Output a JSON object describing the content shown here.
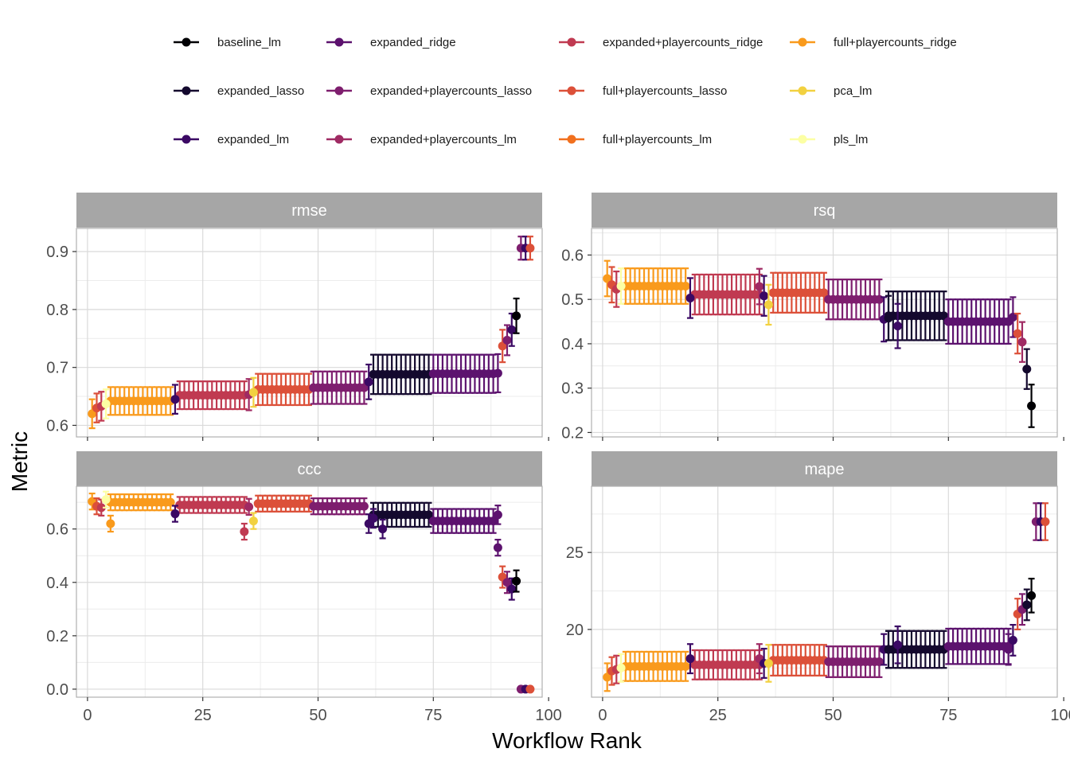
{
  "chart_data": {
    "type": "scatter",
    "xlabel": "Workflow Rank",
    "ylabel": "Metric",
    "legend_position": "top",
    "grid": true,
    "x_ticks": [
      0,
      25,
      50,
      75,
      100
    ],
    "series_legend": [
      {
        "name": "baseline_lm",
        "color": "#000004"
      },
      {
        "name": "expanded_lasso",
        "color": "#14092e"
      },
      {
        "name": "expanded_lm",
        "color": "#3b0964"
      },
      {
        "name": "expanded_ridge",
        "color": "#5c126e"
      },
      {
        "name": "expanded+playercounts_lasso",
        "color": "#7e1e6e"
      },
      {
        "name": "expanded+playercounts_lm",
        "color": "#9f2a63"
      },
      {
        "name": "expanded+playercounts_ridge",
        "color": "#c03a51"
      },
      {
        "name": "full+playercounts_lasso",
        "color": "#dc5039"
      },
      {
        "name": "full+playercounts_lm",
        "color": "#f1701e"
      },
      {
        "name": "full+playercounts_ridge",
        "color": "#f99a1c"
      },
      {
        "name": "pca_lm",
        "color": "#f2d140"
      },
      {
        "name": "pls_lm",
        "color": "#fcffa4"
      }
    ],
    "panels": [
      {
        "title": "rmse",
        "ylim": [
          0.58,
          0.94
        ],
        "y_ticks": [
          0.6,
          0.7,
          0.8,
          0.9
        ],
        "groups": [
          {
            "series": "full+playercounts_ridge",
            "x": [
              5,
              18
            ],
            "y": 0.642,
            "half": 0.024
          },
          {
            "series": "expanded+playercounts_ridge",
            "x": [
              20,
              34
            ],
            "y": 0.652,
            "half": 0.024
          },
          {
            "series": "full+playercounts_lasso",
            "x": [
              37,
              48
            ],
            "y": 0.662,
            "half": 0.027
          },
          {
            "series": "expanded+playercounts_lasso",
            "x": [
              49,
              60
            ],
            "y": 0.665,
            "half": 0.028
          },
          {
            "series": "expanded_lasso",
            "x": [
              62,
              74
            ],
            "y": 0.688,
            "half": 0.034
          },
          {
            "series": "expanded_ridge",
            "x": [
              75,
              88
            ],
            "y": 0.689,
            "half": 0.033
          }
        ],
        "points": [
          {
            "series": "full+playercounts_ridge",
            "x": 1,
            "y": 0.62,
            "half": 0.025
          },
          {
            "series": "full+playercounts_lasso",
            "x": 2,
            "y": 0.63,
            "half": 0.025
          },
          {
            "series": "expanded+playercounts_ridge",
            "x": 3,
            "y": 0.633,
            "half": 0.025
          },
          {
            "series": "pls_lm",
            "x": 4,
            "y": 0.637,
            "half": 0.025
          },
          {
            "series": "expanded_lm",
            "x": 19,
            "y": 0.645,
            "half": 0.025
          },
          {
            "series": "expanded+playercounts_lm",
            "x": 35,
            "y": 0.653,
            "half": 0.027
          },
          {
            "series": "pca_lm",
            "x": 36,
            "y": 0.657,
            "half": 0.025
          },
          {
            "series": "expanded_lm",
            "x": 61,
            "y": 0.675,
            "half": 0.03
          },
          {
            "series": "expanded_ridge",
            "x": 89,
            "y": 0.69,
            "half": 0.033
          },
          {
            "series": "full+playercounts_lasso",
            "x": 90,
            "y": 0.737,
            "half": 0.028
          },
          {
            "series": "expanded+playercounts_lasso",
            "x": 91,
            "y": 0.747,
            "half": 0.026
          },
          {
            "series": "expanded_lm",
            "x": 92,
            "y": 0.765,
            "half": 0.028
          },
          {
            "series": "baseline_lm",
            "x": 93,
            "y": 0.789,
            "half": 0.03
          },
          {
            "series": "expanded+playercounts_lasso",
            "x": 94,
            "y": 0.906,
            "half": 0.02
          },
          {
            "series": "expanded_lm",
            "x": 95,
            "y": 0.906,
            "half": 0.02
          },
          {
            "series": "full+playercounts_lasso",
            "x": 96,
            "y": 0.906,
            "half": 0.02
          }
        ]
      },
      {
        "title": "rsq",
        "ylim": [
          0.19,
          0.66
        ],
        "y_ticks": [
          0.2,
          0.3,
          0.4,
          0.5,
          0.6
        ],
        "groups": [
          {
            "series": "full+playercounts_ridge",
            "x": [
              5,
              18
            ],
            "y": 0.53,
            "half": 0.04
          },
          {
            "series": "expanded+playercounts_ridge",
            "x": [
              20,
              34
            ],
            "y": 0.511,
            "half": 0.045
          },
          {
            "series": "full+playercounts_lasso",
            "x": [
              37,
              48
            ],
            "y": 0.515,
            "half": 0.045
          },
          {
            "series": "expanded+playercounts_lasso",
            "x": [
              49,
              60
            ],
            "y": 0.5,
            "half": 0.045
          },
          {
            "series": "expanded_lasso",
            "x": [
              62,
              74
            ],
            "y": 0.463,
            "half": 0.055
          },
          {
            "series": "expanded_ridge",
            "x": [
              75,
              88
            ],
            "y": 0.45,
            "half": 0.05
          }
        ],
        "points": [
          {
            "series": "full+playercounts_ridge",
            "x": 1,
            "y": 0.547,
            "half": 0.04
          },
          {
            "series": "full+playercounts_lasso",
            "x": 2,
            "y": 0.533,
            "half": 0.04
          },
          {
            "series": "expanded+playercounts_ridge",
            "x": 3,
            "y": 0.523,
            "half": 0.04
          },
          {
            "series": "pls_lm",
            "x": 4,
            "y": 0.53,
            "half": 0.04
          },
          {
            "series": "expanded_lm",
            "x": 19,
            "y": 0.503,
            "half": 0.045
          },
          {
            "series": "expanded+playercounts_lm",
            "x": 34,
            "y": 0.529,
            "half": 0.04
          },
          {
            "series": "expanded_lm",
            "x": 35,
            "y": 0.508,
            "half": 0.045
          },
          {
            "series": "pca_lm",
            "x": 36,
            "y": 0.488,
            "half": 0.045
          },
          {
            "series": "expanded_lm",
            "x": 61,
            "y": 0.455,
            "half": 0.05
          },
          {
            "series": "expanded_lasso",
            "x": 62,
            "y": 0.458,
            "half": 0.05
          },
          {
            "series": "expanded_lm",
            "x": 64,
            "y": 0.44,
            "half": 0.05
          },
          {
            "series": "expanded_ridge",
            "x": 89,
            "y": 0.46,
            "half": 0.045
          },
          {
            "series": "full+playercounts_lasso",
            "x": 90,
            "y": 0.423,
            "half": 0.045
          },
          {
            "series": "expanded+playercounts_lm",
            "x": 91,
            "y": 0.404,
            "half": 0.045
          },
          {
            "series": "expanded_lasso",
            "x": 92,
            "y": 0.343,
            "half": 0.045
          },
          {
            "series": "baseline_lm",
            "x": 93,
            "y": 0.26,
            "half": 0.048
          }
        ]
      },
      {
        "title": "ccc",
        "ylim": [
          -0.03,
          0.76
        ],
        "y_ticks": [
          0.0,
          0.2,
          0.4,
          0.6
        ],
        "groups": [
          {
            "series": "full+playercounts_ridge",
            "x": [
              5,
              18
            ],
            "y": 0.7,
            "half": 0.03
          },
          {
            "series": "expanded+playercounts_ridge",
            "x": [
              20,
              34
            ],
            "y": 0.69,
            "half": 0.03
          },
          {
            "series": "full+playercounts_lasso",
            "x": [
              37,
              48
            ],
            "y": 0.695,
            "half": 0.03
          },
          {
            "series": "expanded+playercounts_lasso",
            "x": [
              49,
              60
            ],
            "y": 0.685,
            "half": 0.03
          },
          {
            "series": "expanded_lasso",
            "x": [
              62,
              74
            ],
            "y": 0.653,
            "half": 0.045
          },
          {
            "series": "expanded_ridge",
            "x": [
              75,
              88
            ],
            "y": 0.63,
            "half": 0.045
          }
        ],
        "points": [
          {
            "series": "full+playercounts_ridge",
            "x": 1,
            "y": 0.703,
            "half": 0.03
          },
          {
            "series": "full+playercounts_lasso",
            "x": 2,
            "y": 0.685,
            "half": 0.03
          },
          {
            "series": "expanded+playercounts_ridge",
            "x": 3,
            "y": 0.68,
            "half": 0.03
          },
          {
            "series": "pls_lm",
            "x": 4,
            "y": 0.71,
            "half": 0.03
          },
          {
            "series": "full+playercounts_ridge",
            "x": 5,
            "y": 0.62,
            "half": 0.03
          },
          {
            "series": "expanded_lm",
            "x": 19,
            "y": 0.657,
            "half": 0.03
          },
          {
            "series": "expanded+playercounts_ridge",
            "x": 34,
            "y": 0.59,
            "half": 0.03
          },
          {
            "series": "expanded+playercounts_lm",
            "x": 35,
            "y": 0.683,
            "half": 0.03
          },
          {
            "series": "pca_lm",
            "x": 36,
            "y": 0.63,
            "half": 0.03
          },
          {
            "series": "expanded_lm",
            "x": 61,
            "y": 0.62,
            "half": 0.035
          },
          {
            "series": "expanded_lm",
            "x": 62,
            "y": 0.64,
            "half": 0.035
          },
          {
            "series": "expanded_lm",
            "x": 64,
            "y": 0.6,
            "half": 0.035
          },
          {
            "series": "expanded_ridge",
            "x": 89,
            "y": 0.653,
            "half": 0.035
          },
          {
            "series": "expanded_ridge",
            "x": 89,
            "y": 0.53,
            "half": 0.03
          },
          {
            "series": "full+playercounts_lasso",
            "x": 90,
            "y": 0.42,
            "half": 0.04
          },
          {
            "series": "expanded+playercounts_lasso",
            "x": 91,
            "y": 0.4,
            "half": 0.04
          },
          {
            "series": "expanded_lm",
            "x": 92,
            "y": 0.375,
            "half": 0.04
          },
          {
            "series": "baseline_lm",
            "x": 93,
            "y": 0.405,
            "half": 0.04
          },
          {
            "series": "expanded+playercounts_lasso",
            "x": 94,
            "y": 0.0,
            "half": 0.0
          },
          {
            "series": "expanded_lm",
            "x": 95,
            "y": 0.0,
            "half": 0.0
          },
          {
            "series": "full+playercounts_lasso",
            "x": 96,
            "y": 0.0,
            "half": 0.0
          }
        ]
      },
      {
        "title": "mape",
        "ylim": [
          15.6,
          29.3
        ],
        "y_ticks": [
          20,
          25
        ],
        "groups": [
          {
            "series": "full+playercounts_ridge",
            "x": [
              5,
              18
            ],
            "y": 17.6,
            "half": 0.95
          },
          {
            "series": "expanded+playercounts_ridge",
            "x": [
              20,
              34
            ],
            "y": 17.7,
            "half": 0.95
          },
          {
            "series": "full+playercounts_lasso",
            "x": [
              37,
              48
            ],
            "y": 18.0,
            "half": 1.0
          },
          {
            "series": "expanded+playercounts_lasso",
            "x": [
              49,
              60
            ],
            "y": 17.9,
            "half": 1.0
          },
          {
            "series": "expanded_lasso",
            "x": [
              62,
              74
            ],
            "y": 18.7,
            "half": 1.2
          },
          {
            "series": "expanded_ridge",
            "x": [
              75,
              88
            ],
            "y": 18.9,
            "half": 1.15
          }
        ],
        "points": [
          {
            "series": "full+playercounts_ridge",
            "x": 1,
            "y": 16.9,
            "half": 0.9
          },
          {
            "series": "full+playercounts_lasso",
            "x": 2,
            "y": 17.3,
            "half": 0.9
          },
          {
            "series": "expanded+playercounts_ridge",
            "x": 3,
            "y": 17.4,
            "half": 0.9
          },
          {
            "series": "pls_lm",
            "x": 4,
            "y": 17.5,
            "half": 0.9
          },
          {
            "series": "expanded_lm",
            "x": 19,
            "y": 18.1,
            "half": 0.95
          },
          {
            "series": "expanded+playercounts_lm",
            "x": 34,
            "y": 18.1,
            "half": 0.95
          },
          {
            "series": "expanded_lm",
            "x": 35,
            "y": 17.8,
            "half": 0.95
          },
          {
            "series": "pca_lm",
            "x": 36,
            "y": 17.8,
            "half": 1.2
          },
          {
            "series": "expanded_lm",
            "x": 61,
            "y": 18.7,
            "half": 1.0
          },
          {
            "series": "expanded_lasso",
            "x": 62,
            "y": 18.7,
            "half": 1.2
          },
          {
            "series": "expanded_lm",
            "x": 64,
            "y": 19.0,
            "half": 1.2
          },
          {
            "series": "expanded_ridge",
            "x": 88,
            "y": 18.7,
            "half": 1.0
          },
          {
            "series": "expanded_lm",
            "x": 89,
            "y": 19.3,
            "half": 1.0
          },
          {
            "series": "full+playercounts_lasso",
            "x": 90,
            "y": 21.0,
            "half": 1.0
          },
          {
            "series": "expanded+playercounts_lasso",
            "x": 91,
            "y": 21.3,
            "half": 1.0
          },
          {
            "series": "expanded_lasso",
            "x": 92,
            "y": 21.6,
            "half": 1.0
          },
          {
            "series": "baseline_lm",
            "x": 93,
            "y": 22.2,
            "half": 1.1
          },
          {
            "series": "expanded+playercounts_lasso",
            "x": 94,
            "y": 27.0,
            "half": 1.2
          },
          {
            "series": "expanded_lm",
            "x": 95,
            "y": 27.0,
            "half": 1.2
          },
          {
            "series": "full+playercounts_lasso",
            "x": 96,
            "y": 27.0,
            "half": 1.2
          }
        ]
      }
    ]
  }
}
